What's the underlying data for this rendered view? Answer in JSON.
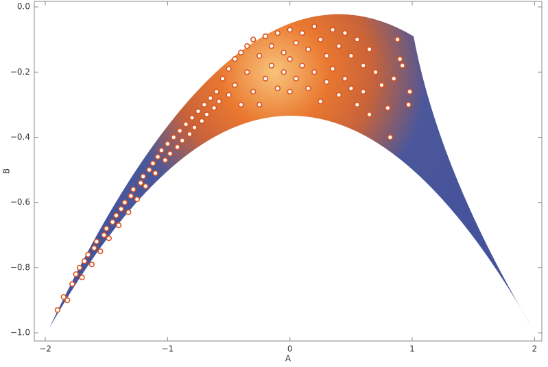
{
  "chart_data": {
    "type": "scatter",
    "xlabel": "A",
    "ylabel": "B",
    "color": "#d9541e",
    "xlim": [
      -2.09,
      2.06
    ],
    "ylim": [
      -1.025,
      0.017
    ],
    "xticks": [
      {
        "value": -2,
        "label": "−2"
      },
      {
        "value": -1,
        "label": "−1"
      },
      0,
      1,
      2
    ],
    "yticks": [
      {
        "value": 0,
        "label": "0.0"
      },
      {
        "value": -0.2,
        "label": "−0.2"
      },
      {
        "value": -0.4,
        "label": "−0.4"
      },
      {
        "value": -0.6,
        "label": "−0.6"
      },
      {
        "value": -0.8,
        "label": "−0.8"
      },
      {
        "value": -1,
        "label": "−1.0"
      }
    ],
    "x": [
      -1.9,
      -1.85,
      -1.82,
      -1.78,
      -1.75,
      -1.72,
      -1.7,
      -1.68,
      -1.65,
      -1.62,
      -1.6,
      -1.58,
      -1.55,
      -1.52,
      -1.5,
      -1.48,
      -1.45,
      -1.42,
      -1.4,
      -1.38,
      -1.35,
      -1.32,
      -1.3,
      -1.28,
      -1.25,
      -1.22,
      -1.2,
      -1.18,
      -1.15,
      -1.12,
      -1.1,
      -1.08,
      -1.05,
      -1.02,
      -1.0,
      -0.98,
      -0.95,
      -0.92,
      -0.9,
      -0.88,
      -0.85,
      -0.82,
      -0.8,
      -0.78,
      -0.75,
      -0.72,
      -0.7,
      -0.68,
      -0.65,
      -0.62,
      -0.6,
      -0.58,
      -0.55,
      -0.5,
      -0.5,
      -0.45,
      -0.45,
      -0.4,
      -0.4,
      -0.35,
      -0.35,
      -0.3,
      -0.3,
      -0.25,
      -0.25,
      -0.2,
      -0.2,
      -0.15,
      -0.15,
      -0.1,
      -0.1,
      -0.05,
      -0.05,
      0,
      0,
      0,
      0.05,
      0.05,
      0.1,
      0.1,
      0.15,
      0.15,
      0.2,
      0.2,
      0.25,
      0.25,
      0.3,
      0.3,
      0.35,
      0.35,
      0.4,
      0.4,
      0.45,
      0.45,
      0.5,
      0.5,
      0.55,
      0.55,
      0.6,
      0.6,
      0.65,
      0.65,
      0.7,
      0.75,
      0.8,
      0.82,
      0.85,
      0.88,
      0.9,
      0.97,
      0.98,
      0.92
    ],
    "values": [
      -0.93,
      -0.89,
      -0.9,
      -0.85,
      -0.82,
      -0.8,
      -0.83,
      -0.78,
      -0.76,
      -0.79,
      -0.74,
      -0.72,
      -0.75,
      -0.7,
      -0.68,
      -0.71,
      -0.66,
      -0.64,
      -0.67,
      -0.62,
      -0.6,
      -0.63,
      -0.58,
      -0.56,
      -0.59,
      -0.54,
      -0.52,
      -0.55,
      -0.5,
      -0.48,
      -0.51,
      -0.46,
      -0.44,
      -0.47,
      -0.42,
      -0.45,
      -0.4,
      -0.43,
      -0.38,
      -0.41,
      -0.36,
      -0.39,
      -0.34,
      -0.37,
      -0.32,
      -0.35,
      -0.3,
      -0.33,
      -0.28,
      -0.31,
      -0.26,
      -0.29,
      -0.22,
      -0.19,
      -0.27,
      -0.16,
      -0.24,
      -0.14,
      -0.3,
      -0.12,
      -0.2,
      -0.1,
      -0.26,
      -0.15,
      -0.3,
      -0.09,
      -0.22,
      -0.12,
      -0.18,
      -0.08,
      -0.25,
      -0.14,
      -0.2,
      -0.07,
      -0.16,
      -0.26,
      -0.11,
      -0.22,
      -0.08,
      -0.18,
      -0.13,
      -0.25,
      -0.06,
      -0.2,
      -0.1,
      -0.29,
      -0.15,
      -0.23,
      -0.07,
      -0.19,
      -0.12,
      -0.27,
      -0.08,
      -0.22,
      -0.15,
      -0.25,
      -0.1,
      -0.3,
      -0.18,
      -0.26,
      -0.13,
      -0.33,
      -0.2,
      -0.24,
      -0.31,
      -0.4,
      -0.22,
      -0.1,
      -0.16,
      -0.3,
      -0.26,
      -0.18
    ]
  }
}
